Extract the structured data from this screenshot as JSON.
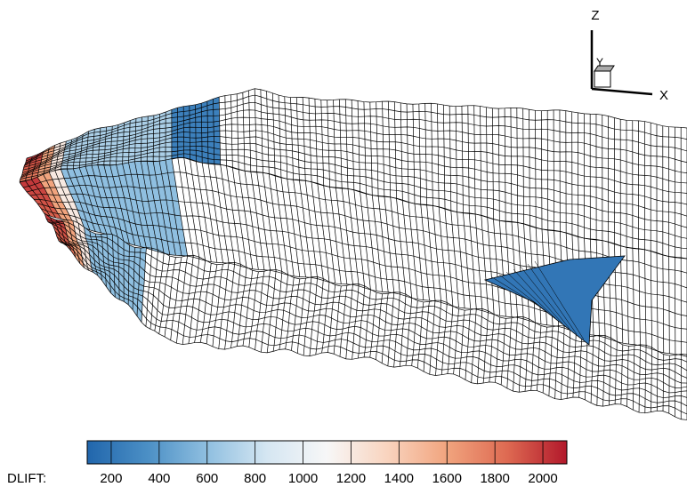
{
  "colorbar": {
    "label": "DLIFT:",
    "range": [
      100,
      2100
    ],
    "ticks": [
      200,
      400,
      600,
      800,
      1000,
      1200,
      1400,
      1600,
      1800,
      2000
    ],
    "colors": [
      "#2166ac",
      "#4b8fc5",
      "#8fbfe0",
      "#d5e6f2",
      "#f7f7f7",
      "#f9d4bf",
      "#f1a47e",
      "#de6a52",
      "#b2182b"
    ]
  },
  "axes": {
    "z": "Z",
    "y": "Y",
    "x": "X"
  }
}
